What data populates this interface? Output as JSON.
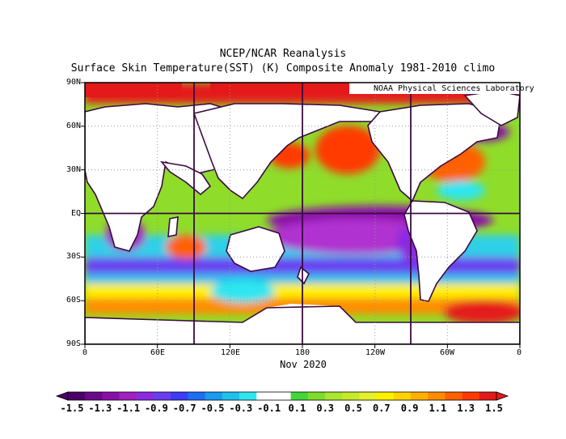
{
  "header": {
    "line1": "NCEP/NCAR Reanalysis",
    "line2": "Surface Skin Temperature(SST) (K) Composite Anomaly 1981-2010 climo",
    "credit": "NOAA Physical Sciences Laboratory"
  },
  "map": {
    "lat_labels": [
      "90N",
      "60N",
      "30N",
      "EQ",
      "30S",
      "60S",
      "90S"
    ],
    "lon_labels": [
      "0",
      "60E",
      "120E",
      "180",
      "120W",
      "60W",
      "0"
    ],
    "date_label": "Nov 2020"
  },
  "colorbar": {
    "labels": [
      "-1.5",
      "-1.3",
      "-1.1",
      "-0.9",
      "-0.7",
      "-0.5",
      "-0.3",
      "-0.1",
      "0.1",
      "0.3",
      "0.5",
      "0.7",
      "0.9",
      "1.1",
      "1.3",
      "1.5"
    ],
    "colors": [
      "#4b0068",
      "#6a0a8a",
      "#8a10a8",
      "#a020c0",
      "#8a2be2",
      "#6a3cf0",
      "#3c3cf5",
      "#1f6df2",
      "#1a9bf0",
      "#1fc0ee",
      "#2fe6f0",
      "#ffffff",
      "#ffffff",
      "#42d639",
      "#7fdc2a",
      "#a8e630",
      "#c6ea2a",
      "#e4f02a",
      "#fff000",
      "#ffd200",
      "#ffb000",
      "#ff8c00",
      "#ff6000",
      "#ff3a00",
      "#e41a1a"
    ]
  }
}
